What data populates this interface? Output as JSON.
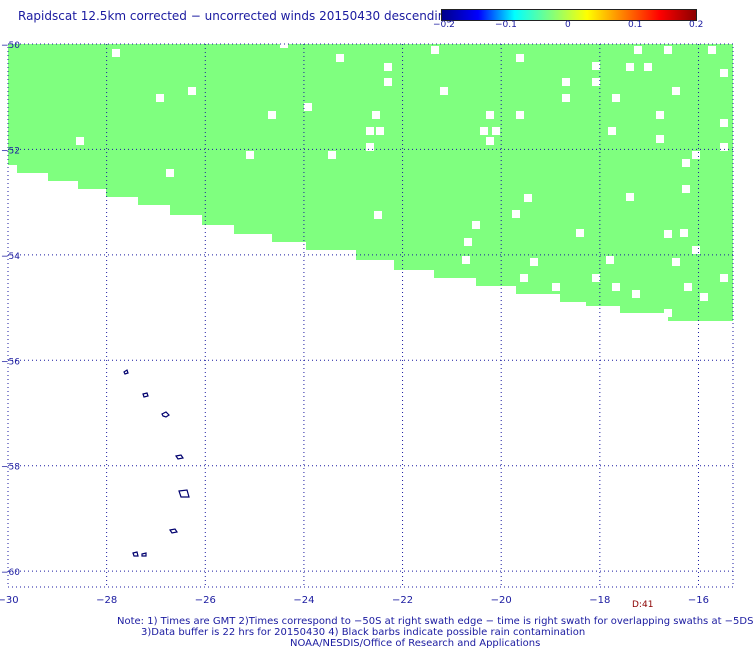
{
  "title": "Rapidscat 12.5km corrected − uncorrected winds 20150430 descending",
  "colorbar": {
    "labels": [
      "−0.2",
      "−0.1",
      "0",
      "0.1",
      "0.2"
    ],
    "colors": [
      "#00008b",
      "#0000ff",
      "#00ffff",
      "#7fff7f",
      "#ffff00",
      "#ff7f00",
      "#ff0000",
      "#8b0000"
    ]
  },
  "map": {
    "lon_ticks": [
      "−30",
      "−28",
      "−26",
      "−24",
      "−22",
      "−20",
      "−18",
      "−16"
    ],
    "lat_ticks": [
      "−50",
      "−52",
      "−54",
      "−56",
      "−58",
      "−60"
    ],
    "lon_range": [
      -30,
      -15.3
    ],
    "lat_range": [
      -60.3,
      -50
    ],
    "swath_color": "#7fff7f",
    "swath_value": 0,
    "grid": true,
    "coastline_color": "#00006e"
  },
  "d_label": "D:41",
  "notes": {
    "line1": "Note: 1) Times are GMT 2)Times correspond to −50S at right swath edge − time is right swath for overlapping swaths at −5DS",
    "line2": "3)Data buffer is 22 hrs for 20150430 4) Black barbs indicate possible rain contamination",
    "line3": "NOAA/NESDIS/Office of Research and Applications"
  }
}
